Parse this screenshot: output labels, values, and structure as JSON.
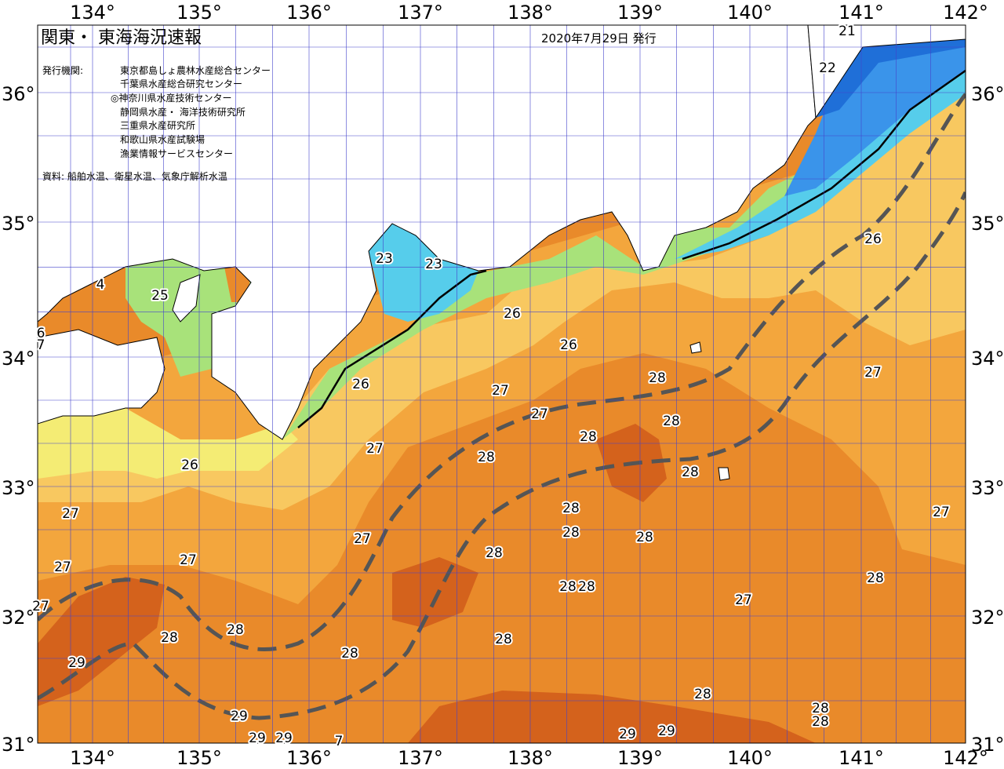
{
  "title": "関東・ 東海海況速報",
  "issue_date": "2020年7月29日 発行",
  "issuers_label": "発行機関:",
  "issuers": [
    "東京都島しょ農林水産総合センター",
    "千葉県水産総合研究センター",
    "◎神奈川県水産技術センター",
    "静岡県水産・ 海洋技術研究所",
    "三重県水産研究所",
    "和歌山県水産試験場",
    "漁業情報サービスセンター"
  ],
  "source": "資料: 船舶水温、衛星水温、気象庁解析水温",
  "longitude_labels": [
    "134°",
    "135°",
    "136°",
    "137°",
    "138°",
    "139°",
    "140°",
    "141°",
    "142°"
  ],
  "latitude_labels": [
    "36°",
    "35°",
    "34°",
    "33°",
    "32°",
    "31°"
  ],
  "temperature_labels": [
    "21",
    "22",
    "23",
    "23",
    "25",
    "4",
    "6",
    "7",
    "26",
    "26",
    "26",
    "26",
    "26",
    "27",
    "27",
    "27",
    "27",
    "27",
    "27",
    "27",
    "27",
    "27",
    "27",
    "27",
    "28",
    "28",
    "28",
    "28",
    "28",
    "28",
    "28",
    "28",
    "28",
    "28",
    "28",
    "28",
    "28",
    "28",
    "28",
    "28",
    "28",
    "28",
    "28",
    "29",
    "29",
    "29",
    "29",
    "29",
    "29",
    "7"
  ],
  "colors": {
    "warm_29": "#d4621c",
    "warm_28": "#e98a2a",
    "warm_27": "#f3a63d",
    "warm_26": "#f8c860",
    "cool_25": "#f4ec74",
    "cool_24": "#a8e27a",
    "cool_23": "#56cdeb",
    "cold_22": "#3a94ea",
    "cold_21": "#1f6fd8",
    "land": "#ffffff",
    "grid": "#4444cc",
    "kuroshio_axis": "#555555"
  }
}
